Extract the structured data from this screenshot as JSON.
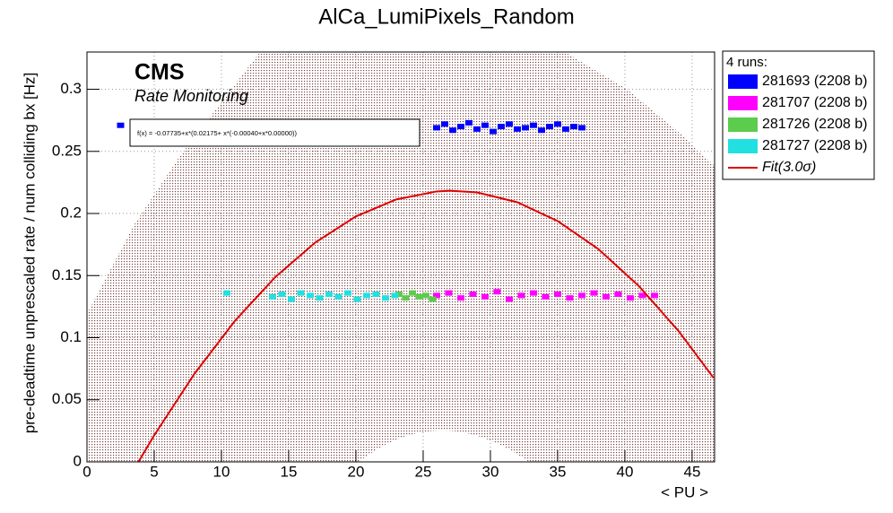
{
  "chart_data": {
    "type": "scatter",
    "title": "AlCa_LumiPixels_Random",
    "x_label": "< PU >",
    "y_label": "pre-deadtime unprescaled rate / num colliding bx [Hz]",
    "annotations": {
      "experiment": "CMS",
      "subtitle": "Rate Monitoring",
      "fit_formula": "f(x) = -0.07735+x*(0.02175+ x*(-0.00040+x*0.00000))"
    },
    "legend_title": "4 runs:",
    "xlim": [
      0,
      46.67
    ],
    "ylim": [
      0,
      0.33
    ],
    "xticks": [
      0,
      5,
      10,
      15,
      20,
      25,
      30,
      35,
      40,
      45
    ],
    "yticks": [
      0,
      0.05,
      0.1,
      0.15,
      0.2,
      0.25,
      0.3
    ],
    "grid": true,
    "series": [
      {
        "name": "281693 (2208 b)",
        "color": "#0000ff",
        "x": [
          2.5,
          26.0,
          26.6,
          27.2,
          27.8,
          28.4,
          29.0,
          29.6,
          30.2,
          30.8,
          31.4,
          32.0,
          32.6,
          33.2,
          33.8,
          34.4,
          35.0,
          35.6,
          36.2,
          36.8
        ],
        "values": [
          0.271,
          0.269,
          0.272,
          0.267,
          0.27,
          0.273,
          0.268,
          0.271,
          0.266,
          0.27,
          0.272,
          0.268,
          0.269,
          0.271,
          0.267,
          0.27,
          0.272,
          0.268,
          0.27,
          0.269
        ]
      },
      {
        "name": "281707 (2208 b)",
        "color": "#ff00ff",
        "x": [
          26.0,
          26.9,
          27.8,
          28.7,
          29.6,
          30.5,
          31.4,
          32.3,
          33.2,
          34.1,
          35.0,
          35.9,
          36.8,
          37.7,
          38.6,
          39.5,
          40.4,
          41.3,
          42.2
        ],
        "values": [
          0.134,
          0.136,
          0.132,
          0.135,
          0.133,
          0.137,
          0.131,
          0.134,
          0.136,
          0.133,
          0.135,
          0.132,
          0.134,
          0.136,
          0.133,
          0.135,
          0.132,
          0.134,
          0.134
        ]
      },
      {
        "name": "281726 (2208 b)",
        "color": "#5ccc4c",
        "x": [
          23.2,
          23.7,
          24.2,
          24.7,
          25.2,
          25.7
        ],
        "values": [
          0.135,
          0.132,
          0.136,
          0.133,
          0.134,
          0.131
        ]
      },
      {
        "name": "281727 (2208 b)",
        "color": "#22e0e0",
        "x": [
          10.4,
          13.8,
          14.5,
          15.2,
          15.9,
          16.6,
          17.3,
          18.0,
          18.7,
          19.4,
          20.1,
          20.8,
          21.5,
          22.2,
          22.9
        ],
        "values": [
          0.136,
          0.133,
          0.135,
          0.131,
          0.136,
          0.134,
          0.132,
          0.135,
          0.133,
          0.136,
          0.131,
          0.134,
          0.135,
          0.132,
          0.134
        ]
      },
      {
        "name": "Fit(3.0σ)",
        "color": "#dd0000",
        "type": "line",
        "x": [
          3.83,
          5,
          8,
          11,
          14,
          17,
          20,
          23,
          26,
          27,
          29,
          32,
          35,
          38,
          41,
          44,
          46.6
        ],
        "values": [
          0,
          0.0214,
          0.07105,
          0.1135,
          0.14875,
          0.1768,
          0.19765,
          0.2113,
          0.21775,
          0.2183,
          0.217,
          0.20905,
          0.1939,
          0.17155,
          0.142,
          0.10525,
          0.06758
        ]
      }
    ]
  }
}
